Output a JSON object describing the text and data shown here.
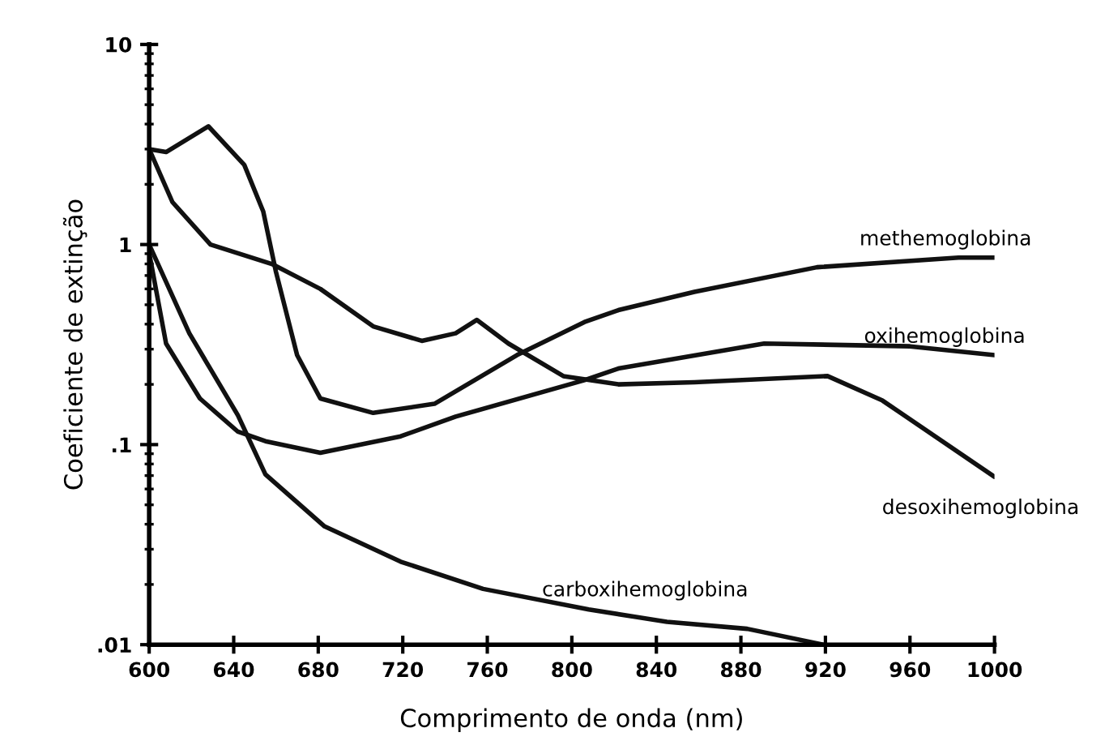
{
  "chart_data": {
    "type": "line",
    "xlabel": "Comprimento de onda (nm)",
    "ylabel": "Coeficiente de extinção",
    "log": "y",
    "grid": false,
    "legend": false,
    "marker": "none",
    "line_style": "solid",
    "xlim": [
      600,
      1000
    ],
    "xticks": [
      600,
      640,
      680,
      720,
      760,
      800,
      840,
      880,
      920,
      960,
      1000
    ],
    "ylim": [
      0.01,
      10
    ],
    "yticks": [
      {
        "value": 0.01,
        "label": ".01"
      },
      {
        "value": 0.1,
        "label": ".1"
      },
      {
        "value": 1,
        "label": "1"
      },
      {
        "value": 10,
        "label": "10"
      }
    ],
    "series": [
      {
        "name": "methemoglobina",
        "color": "#111111",
        "x": [
          600,
          608,
          628,
          645,
          654,
          660,
          670,
          681,
          706,
          735,
          774,
          806,
          822,
          858,
          916,
          983,
          1000
        ],
        "values": [
          3.0,
          2.9,
          3.9,
          2.5,
          1.46,
          0.73,
          0.28,
          0.17,
          0.144,
          0.16,
          0.28,
          0.41,
          0.47,
          0.58,
          0.77,
          0.86,
          0.86
        ]
      },
      {
        "name": "oxihemoglobina",
        "color": "#111111",
        "x": [
          600,
          608,
          624,
          642,
          655,
          681,
          719,
          745,
          806,
          822,
          891,
          960,
          1000
        ],
        "values": [
          0.91,
          0.32,
          0.17,
          0.116,
          0.104,
          0.091,
          0.11,
          0.138,
          0.21,
          0.24,
          0.32,
          0.31,
          0.28
        ]
      },
      {
        "name": "desoxihemoglobina",
        "color": "#111111",
        "x": [
          600,
          611,
          629,
          658,
          681,
          706,
          729,
          745,
          755,
          770,
          796,
          822,
          858,
          921,
          947,
          1000
        ],
        "values": [
          3.0,
          1.63,
          1.0,
          0.8,
          0.6,
          0.39,
          0.33,
          0.36,
          0.42,
          0.32,
          0.22,
          0.2,
          0.205,
          0.22,
          0.166,
          0.069
        ]
      },
      {
        "name": "carboxihemoglobina",
        "color": "#111111",
        "x": [
          600,
          619,
          642,
          655,
          683,
          719,
          758,
          808,
          845,
          883,
          919
        ],
        "values": [
          1.0,
          0.36,
          0.14,
          0.071,
          0.039,
          0.026,
          0.019,
          0.015,
          0.013,
          0.012,
          0.01
        ]
      }
    ]
  }
}
